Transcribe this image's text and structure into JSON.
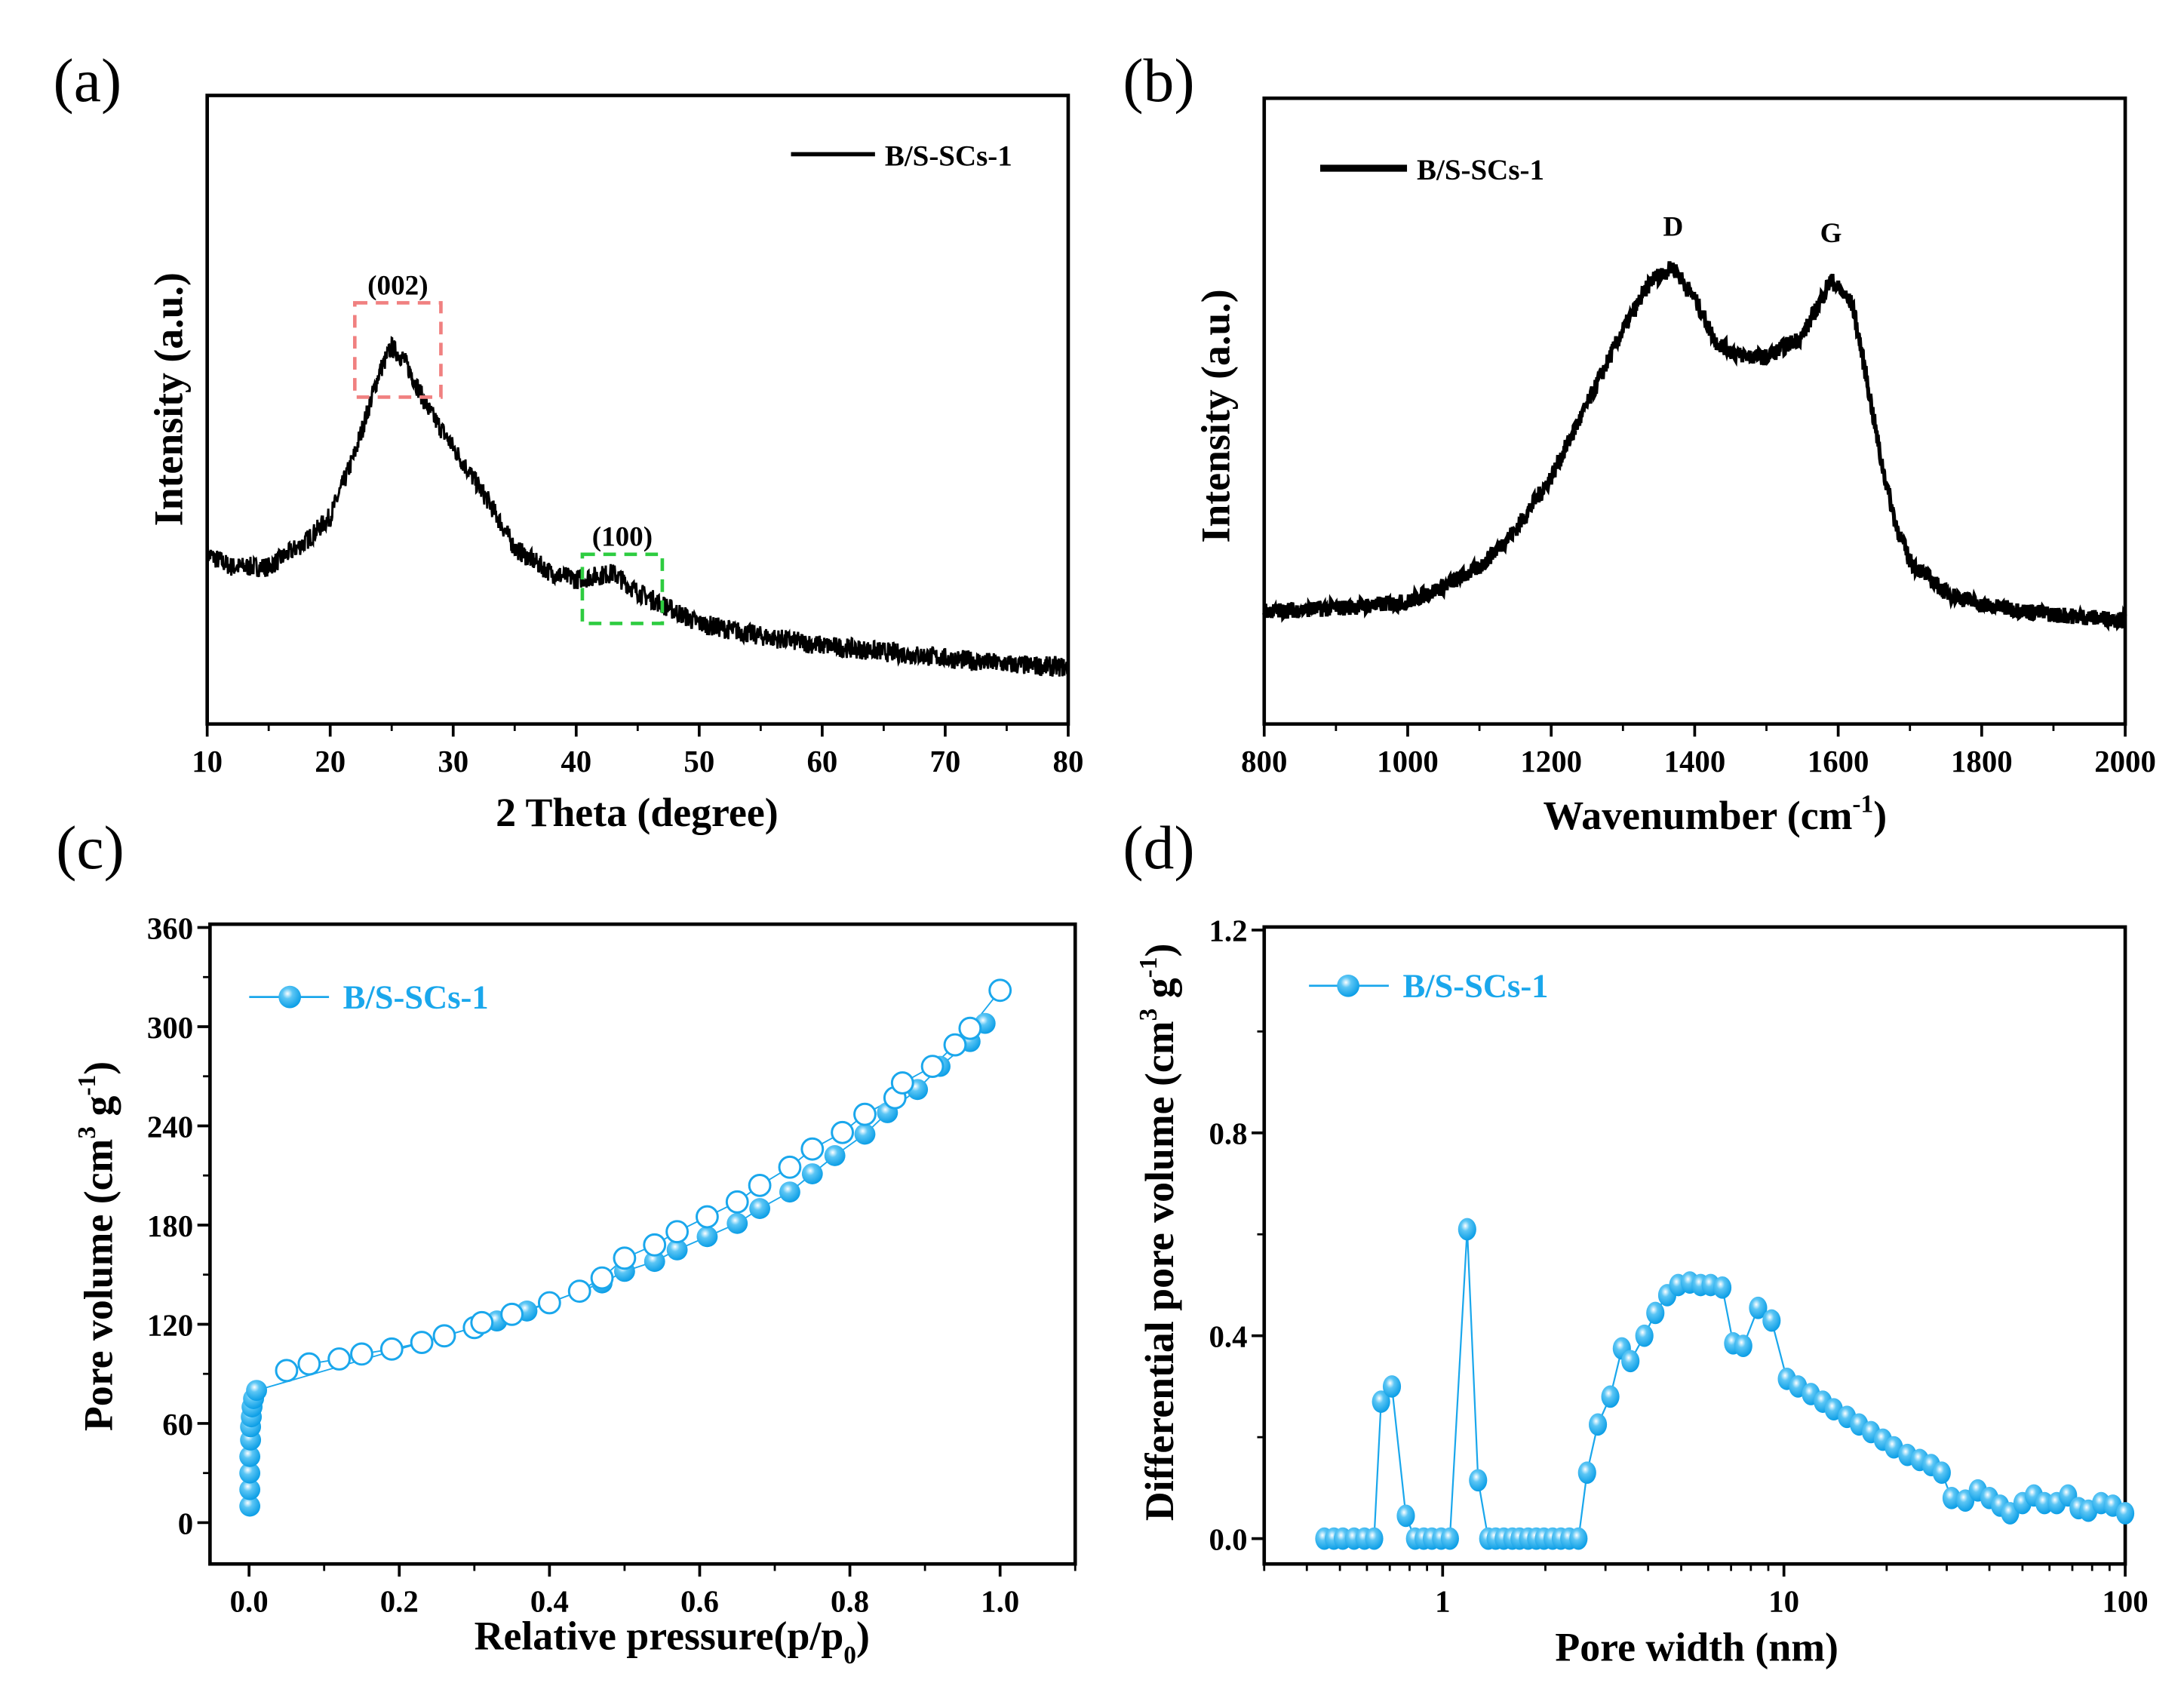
{
  "colors": {
    "series_blue": "#1aa7ec",
    "xrd_line": "#000000",
    "box_002": "#f08080",
    "box_100": "#2ecc40"
  },
  "panel_labels": [
    "(a)",
    "(b)",
    "(c)",
    "(d)"
  ],
  "chart_data": [
    {
      "panel": "(a)",
      "type": "line",
      "xlabel": "2 Theta (degree)",
      "ylabel": "Intensity (a.u.)",
      "xlim": [
        10,
        80
      ],
      "ylim": [
        0,
        100
      ],
      "xticks": [
        10,
        20,
        30,
        40,
        50,
        60,
        70,
        80
      ],
      "legend": {
        "label": "B/S-SCs-1",
        "position": "top-right"
      },
      "series": [
        {
          "name": "B/S-SCs-1",
          "x": [
            10,
            12,
            15,
            18,
            20,
            22,
            24,
            25,
            26,
            28,
            30,
            33,
            35,
            38,
            40,
            43,
            45,
            50,
            55,
            60,
            65,
            70,
            75,
            80
          ],
          "y": [
            27,
            25,
            25,
            29,
            33,
            43,
            56,
            60,
            58,
            50,
            44,
            35,
            28,
            24,
            23,
            24,
            21,
            16,
            14,
            12.5,
            11.5,
            10.5,
            9.5,
            9
          ]
        }
      ],
      "annotations": [
        {
          "text": "(002)",
          "x_range": [
            22,
            29
          ],
          "y_range": [
            52,
            67
          ]
        },
        {
          "text": "(100)",
          "x_range": [
            40.5,
            47
          ],
          "y_range": [
            16,
            27
          ]
        }
      ]
    },
    {
      "panel": "(b)",
      "type": "line",
      "xlabel_main": "Wavenumber (cm",
      "xlabel_sup": "-1",
      "xlabel_end": ")",
      "ylabel": "Intensity (a.u.)",
      "xlim": [
        800,
        2000
      ],
      "ylim": [
        0,
        100
      ],
      "xticks": [
        800,
        1000,
        1200,
        1400,
        1600,
        1800,
        2000
      ],
      "legend": {
        "label": "B/S-SCs-1",
        "position": "top-left"
      },
      "series": [
        {
          "name": "B/S-SCs-1",
          "x": [
            800,
            900,
            1000,
            1050,
            1100,
            1150,
            1200,
            1250,
            1300,
            1340,
            1370,
            1400,
            1430,
            1460,
            1500,
            1550,
            1590,
            1620,
            1640,
            1660,
            1680,
            1700,
            1750,
            1800,
            1900,
            2000
          ],
          "y": [
            18,
            18.5,
            19.5,
            22,
            25,
            31,
            39.5,
            51,
            63,
            71,
            73,
            68,
            61,
            59,
            58.6,
            62,
            71,
            67,
            55,
            42,
            32,
            26,
            21,
            19,
            17.5,
            16.6
          ]
        }
      ],
      "annotations": [
        {
          "text": "D",
          "x": 1370,
          "y": 78
        },
        {
          "text": "G",
          "x": 1590,
          "y": 77
        }
      ]
    },
    {
      "panel": "(c)",
      "type": "scatter",
      "xlabel_main": "Relative pressure(p/p",
      "xlabel_sub": "0",
      "xlabel_end": ")",
      "ylabel": {
        "pre": "Pore volume (cm",
        "sup1": "3",
        "mid": " g",
        "sup2": "-1",
        "post": ")"
      },
      "xlim": [
        -0.052,
        1.1
      ],
      "ylim": [
        -25,
        362
      ],
      "xticks": [
        0.0,
        0.2,
        0.4,
        0.6,
        0.8,
        1.0
      ],
      "xtick_labels": [
        "0.0",
        "0.2",
        "0.4",
        "0.6",
        "0.8",
        "1.0"
      ],
      "yticks": [
        0,
        60,
        120,
        180,
        240,
        300,
        360
      ],
      "legend": {
        "label": "B/S-SCs-1",
        "position": "top-left"
      },
      "series": [
        {
          "name": "adsorption",
          "marker": "filled",
          "x": [
            0.001,
            0.001,
            0.001,
            0.001,
            0.002,
            0.002,
            0.003,
            0.004,
            0.006,
            0.01,
            0.33,
            0.37,
            0.47,
            0.5,
            0.54,
            0.57,
            0.61,
            0.65,
            0.68,
            0.72,
            0.75,
            0.78,
            0.82,
            0.85,
            0.89,
            0.92,
            0.96,
            0.98
          ],
          "y": [
            10,
            20,
            30,
            40,
            50,
            58,
            64,
            70,
            75,
            80,
            122,
            128,
            145,
            152,
            158,
            165,
            173,
            181,
            190,
            200,
            211,
            222,
            235,
            248,
            262,
            276,
            291,
            302
          ]
        },
        {
          "name": "desorption",
          "marker": "open",
          "x": [
            0.05,
            0.08,
            0.12,
            0.15,
            0.19,
            0.23,
            0.26,
            0.3,
            0.31,
            0.35,
            0.4,
            0.44,
            0.47,
            0.5,
            0.54,
            0.57,
            0.61,
            0.65,
            0.68,
            0.72,
            0.75,
            0.79,
            0.82,
            0.86,
            0.87,
            0.91,
            0.94,
            0.96,
            1.0
          ],
          "y": [
            92,
            96,
            99,
            102,
            105,
            109,
            113,
            118,
            121,
            126,
            133,
            140,
            148,
            160,
            168,
            176,
            185,
            194,
            204,
            215,
            226,
            236,
            247,
            257,
            266,
            276,
            289,
            299,
            322
          ]
        }
      ]
    },
    {
      "panel": "(d)",
      "type": "line",
      "xlabel": "Pore width (nm)",
      "ylabel": {
        "pre": "Differential pore volume (cm",
        "sup1": "3",
        "mid": " g",
        "sup2": "-1",
        "post": ")"
      },
      "xscale": "log",
      "xlim": [
        0.3,
        100
      ],
      "ylim": [
        -0.05,
        1.206
      ],
      "xticks": [
        1,
        10,
        100
      ],
      "xtick_labels": [
        "1",
        "10",
        "100"
      ],
      "yticks": [
        0.0,
        0.4,
        0.8,
        1.2
      ],
      "ytick_labels": [
        "0.0",
        "0.4",
        "0.8",
        "1.2"
      ],
      "legend": {
        "label": "B/S-SCs-1",
        "position": "top-left"
      },
      "series": [
        {
          "name": "B/S-SCs-1",
          "x": [
            0.45,
            0.48,
            0.51,
            0.55,
            0.59,
            0.63,
            0.66,
            0.71,
            0.78,
            0.83,
            0.88,
            0.93,
            0.99,
            1.05,
            1.18,
            1.27,
            1.36,
            1.43,
            1.51,
            1.6,
            1.68,
            1.78,
            1.88,
            1.98,
            2.1,
            2.22,
            2.35,
            2.5,
            2.65,
            2.85,
            3.1,
            3.35,
            3.55,
            3.9,
            4.2,
            4.55,
            4.9,
            5.3,
            5.7,
            6.1,
            6.6,
            7.1,
            7.6,
            8.4,
            9.2,
            10.2,
            11,
            12,
            13,
            14,
            15.3,
            16.6,
            18,
            19.5,
            21,
            23,
            25,
            27,
            29,
            31,
            34,
            37,
            40,
            43,
            46,
            50,
            54,
            58,
            63,
            68,
            73,
            78,
            85,
            92,
            100
          ],
          "y": [
            0,
            0,
            0,
            0,
            0,
            0,
            0.27,
            0.3,
            0.045,
            0,
            0,
            0,
            0,
            0,
            0.61,
            0.115,
            0,
            0,
            0,
            0,
            0,
            0,
            0,
            0,
            0,
            0,
            0,
            0,
            0.13,
            0.225,
            0.28,
            0.375,
            0.35,
            0.4,
            0.445,
            0.48,
            0.5,
            0.505,
            0.5,
            0.5,
            0.495,
            0.385,
            0.38,
            0.455,
            0.43,
            0.315,
            0.3,
            0.285,
            0.27,
            0.255,
            0.24,
            0.225,
            0.21,
            0.195,
            0.18,
            0.165,
            0.155,
            0.145,
            0.13,
            0.08,
            0.075,
            0.095,
            0.08,
            0.065,
            0.05,
            0.07,
            0.085,
            0.07,
            0.07,
            0.085,
            0.06,
            0.055,
            0.07,
            0.065,
            0.05
          ]
        }
      ]
    }
  ]
}
